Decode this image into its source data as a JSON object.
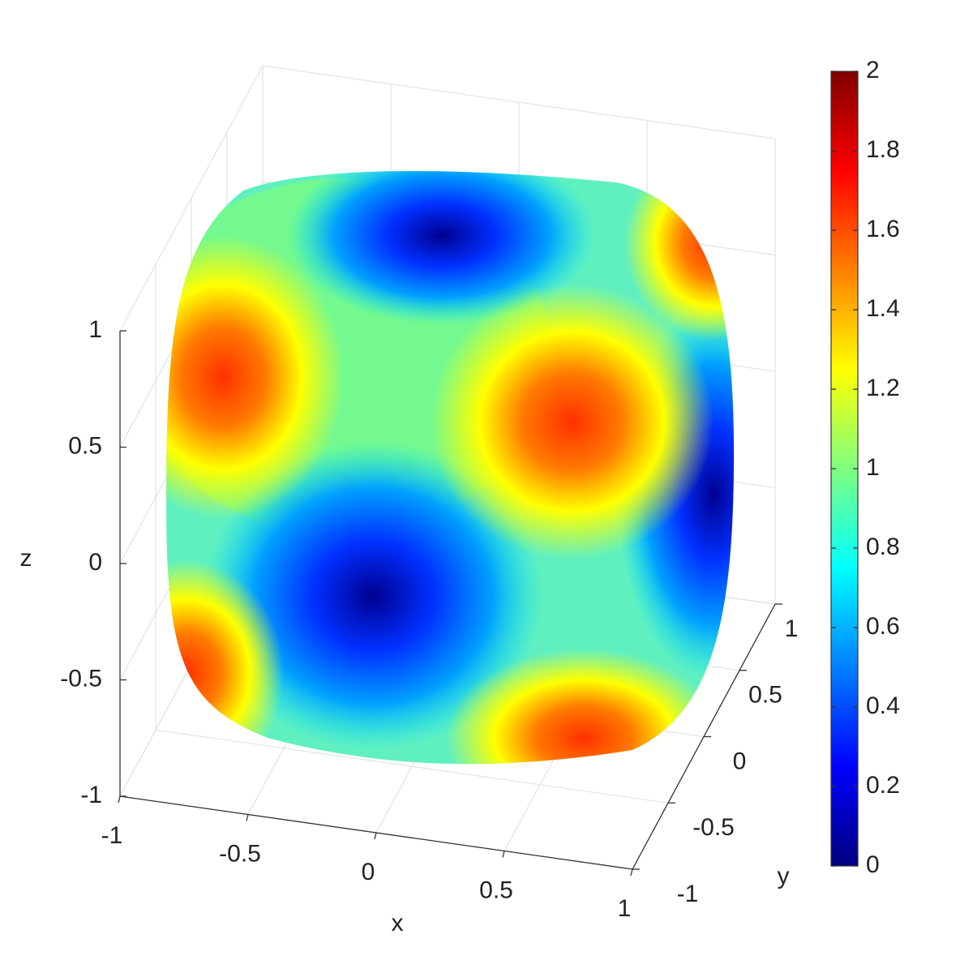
{
  "chart_data": {
    "type": "surface3d",
    "xlabel": "x",
    "ylabel": "y",
    "zlabel": "z",
    "xlim": [
      -1,
      1
    ],
    "ylim": [
      -1,
      1
    ],
    "zlim": [
      -1,
      1
    ],
    "xticks": [
      -1,
      -0.5,
      0,
      0.5,
      1
    ],
    "yticks": [
      -1,
      -0.5,
      0,
      0.5,
      1
    ],
    "zticks": [
      -1,
      -0.5,
      0,
      0.5,
      1
    ],
    "grid": true,
    "colormap": "jet",
    "clim": [
      0,
      2
    ],
    "cticks": [
      0,
      0.2,
      0.4,
      0.6,
      0.8,
      1,
      1.2,
      1.4,
      1.6,
      1.8,
      2
    ]
  }
}
